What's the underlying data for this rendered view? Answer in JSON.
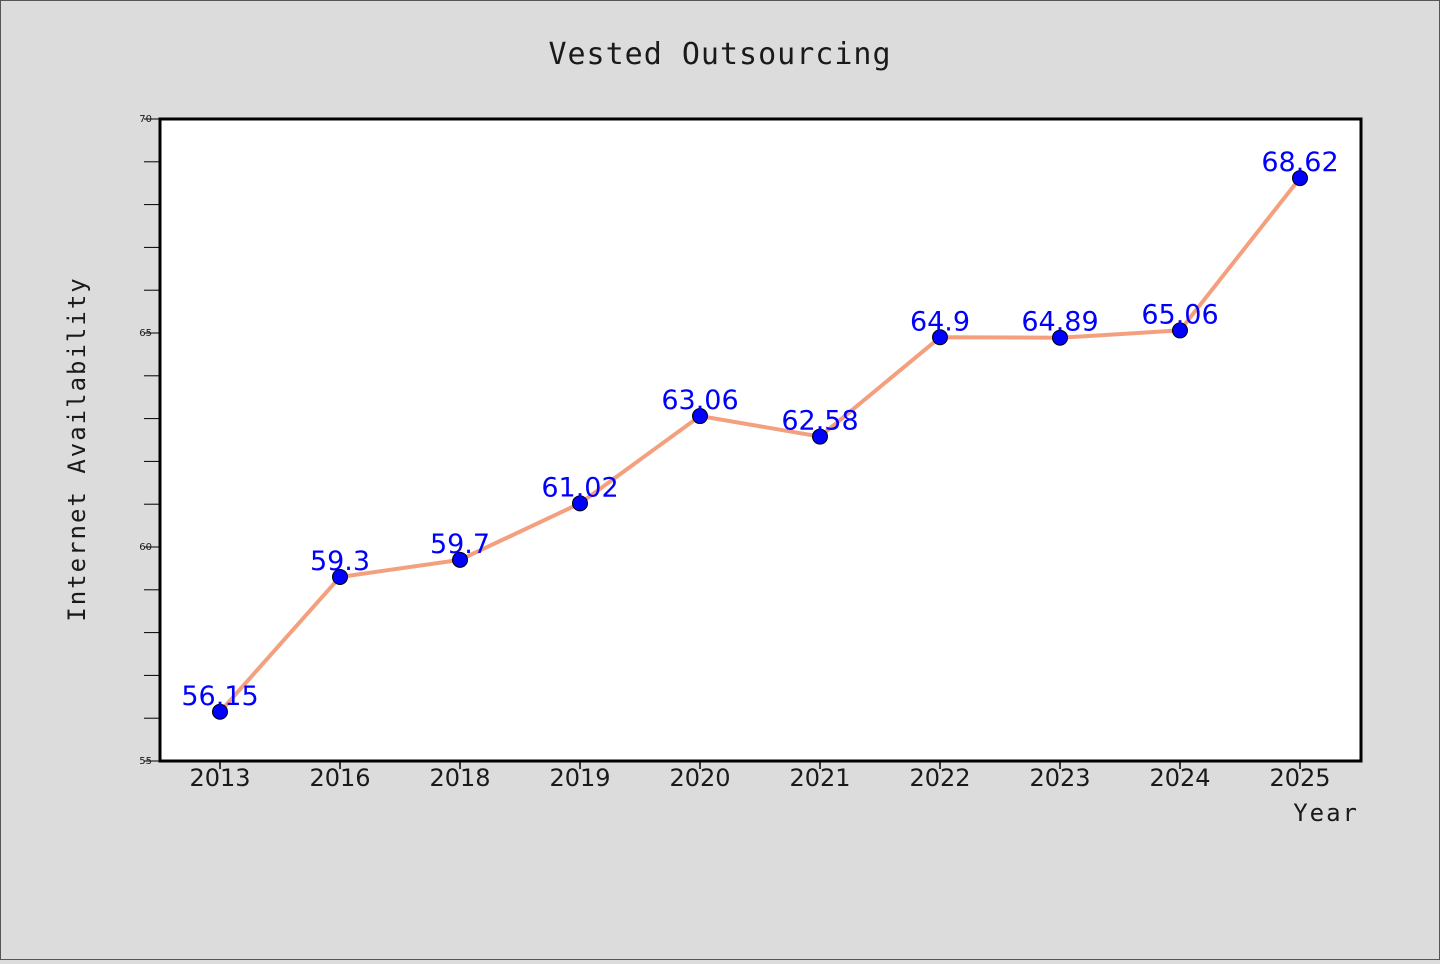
{
  "chart_data": {
    "type": "line",
    "title": "Vested Outsourcing",
    "xlabel": "Year",
    "ylabel": "Internet Availability",
    "categories": [
      "2013",
      "2016",
      "2018",
      "2019",
      "2020",
      "2021",
      "2022",
      "2023",
      "2024",
      "2025"
    ],
    "series": [
      {
        "values": [
          56.15,
          59.3,
          59.7,
          61.02,
          63.06,
          62.58,
          64.9,
          64.89,
          65.06,
          68.62
        ],
        "labels": [
          "56.15",
          "59.3",
          "59.7",
          "61.02",
          "63.06",
          "62.58",
          "64.9",
          "64.89",
          "65.06",
          "68.62"
        ],
        "line_color": "#f4a07e",
        "marker_color": "#0000ff",
        "label_color": "#0000ff"
      }
    ],
    "ylim": [
      55,
      70
    ],
    "y_ticks": [
      55,
      60,
      65,
      70
    ],
    "y_minor_step": 1,
    "grid": false,
    "background": "#dcdcdc",
    "plot_background": "#ffffff"
  }
}
